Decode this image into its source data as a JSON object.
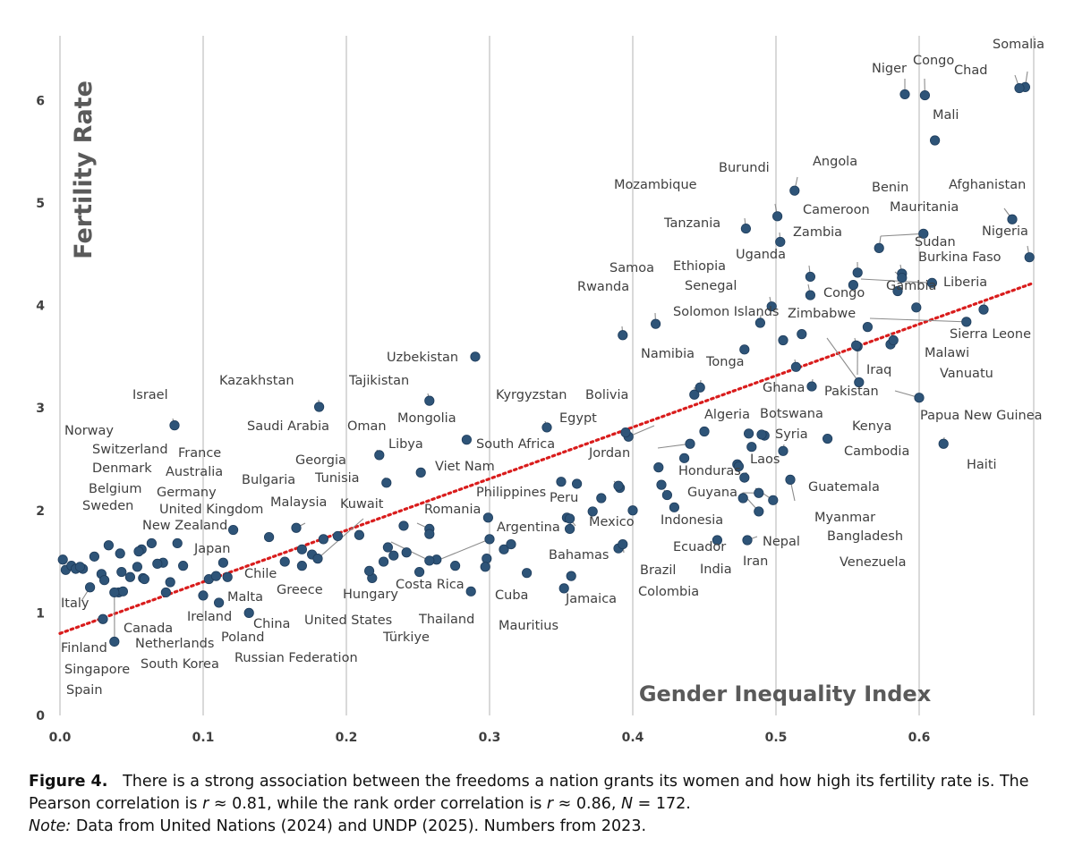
{
  "chart_data": {
    "type": "scatter",
    "title": "",
    "xlabel": "Gender Inequality Index",
    "ylabel": "Fertility Rate",
    "xlim": [
      0.0,
      0.68
    ],
    "ylim": [
      0,
      6.5
    ],
    "xticks": [
      "0.0",
      "0.1",
      "0.2",
      "0.3",
      "0.4",
      "0.5",
      "0.6"
    ],
    "xtick_values": [
      0.0,
      0.1,
      0.2,
      0.3,
      0.4,
      0.5,
      0.6
    ],
    "yticks": [
      "0",
      "1",
      "2",
      "3",
      "4",
      "5",
      "6"
    ],
    "ytick_values": [
      0,
      1,
      2,
      3,
      4,
      5,
      6
    ],
    "grid": "vertical",
    "trendline": {
      "style": "red dotted",
      "x": [
        0.0,
        0.68
      ],
      "y": [
        0.8,
        4.22
      ]
    },
    "labeled_points": [
      {
        "name": "Somalia",
        "x": 0.674,
        "y": 6.13,
        "label_dir": "e"
      },
      {
        "name": "Niger",
        "x": 0.59,
        "y": 6.06,
        "label_dir": "e"
      },
      {
        "name": "Congo",
        "x": 0.604,
        "y": 6.05,
        "label_dir": "e"
      },
      {
        "name": "Chad",
        "x": 0.67,
        "y": 6.12,
        "label_dir": "e"
      },
      {
        "name": "Mali",
        "x": 0.611,
        "y": 5.61,
        "label_dir": "e"
      },
      {
        "name": "Angola",
        "x": 0.513,
        "y": 5.12,
        "label_dir": "e"
      },
      {
        "name": "Burundi",
        "x": 0.501,
        "y": 4.87,
        "label_dir": "e"
      },
      {
        "name": "Mozambique",
        "x": 0.479,
        "y": 4.75,
        "label_dir": "e"
      },
      {
        "name": "Benin",
        "x": 0.572,
        "y": 4.56,
        "label_dir": "e"
      },
      {
        "name": "Afghanistan",
        "x": 0.665,
        "y": 4.84,
        "label_dir": "e"
      },
      {
        "name": "Cameroon",
        "x": 0.557,
        "y": 4.32,
        "label_dir": "e"
      },
      {
        "name": "Mauritania",
        "x": 0.603,
        "y": 4.7,
        "label_dir": "e"
      },
      {
        "name": "Tanzania",
        "x": 0.503,
        "y": 4.62,
        "label_dir": "e"
      },
      {
        "name": "Zambia",
        "x": 0.524,
        "y": 4.28,
        "label_dir": "e"
      },
      {
        "name": "Nigeria",
        "x": 0.677,
        "y": 4.47,
        "label_dir": "e"
      },
      {
        "name": "Sudan",
        "x": 0.588,
        "y": 4.31,
        "label_dir": "e"
      },
      {
        "name": "Uganda",
        "x": 0.524,
        "y": 4.1,
        "label_dir": "e"
      },
      {
        "name": "Burkina Faso",
        "x": 0.609,
        "y": 4.22,
        "label_dir": "e"
      },
      {
        "name": "Samoa",
        "x": 0.416,
        "y": 3.82,
        "label_dir": "e"
      },
      {
        "name": "Ethiopia",
        "x": 0.489,
        "y": 3.83,
        "label_dir": "e"
      },
      {
        "name": "Congo",
        "x": 0.554,
        "y": 4.2,
        "label_dir": "e"
      },
      {
        "name": "Gambia",
        "x": 0.588,
        "y": 4.27,
        "label_dir": "e"
      },
      {
        "name": "Liberia",
        "x": 0.645,
        "y": 3.96,
        "label_dir": "e"
      },
      {
        "name": "Rwanda",
        "x": 0.393,
        "y": 3.71,
        "label_dir": "e"
      },
      {
        "name": "Senegal",
        "x": 0.497,
        "y": 3.99,
        "label_dir": "e"
      },
      {
        "name": "Solomon Islands",
        "x": 0.478,
        "y": 3.57,
        "label_dir": "e"
      },
      {
        "name": "Zimbabwe",
        "x": 0.564,
        "y": 3.79,
        "label_dir": "e"
      },
      {
        "name": "Sierra Leone",
        "x": 0.633,
        "y": 3.84,
        "label_dir": "e"
      },
      {
        "name": "Malawi",
        "x": 0.582,
        "y": 3.66,
        "label_dir": "e"
      },
      {
        "name": "Uzbekistan",
        "x": 0.29,
        "y": 3.5,
        "label_dir": "e"
      },
      {
        "name": "Namibia",
        "x": 0.443,
        "y": 3.13,
        "label_dir": "e"
      },
      {
        "name": "Tonga",
        "x": 0.447,
        "y": 3.2,
        "label_dir": "e"
      },
      {
        "name": "Iraq",
        "x": 0.557,
        "y": 3.6,
        "label_dir": "e"
      },
      {
        "name": "Vanuatu",
        "x": 0.556,
        "y": 3.61,
        "label_dir": "e"
      },
      {
        "name": "Kazakhstan",
        "x": 0.181,
        "y": 3.01,
        "label_dir": "e"
      },
      {
        "name": "Tajikistan",
        "x": 0.258,
        "y": 3.07,
        "label_dir": "e"
      },
      {
        "name": "Ghana",
        "x": 0.514,
        "y": 3.4,
        "label_dir": "e"
      },
      {
        "name": "Pakistan",
        "x": 0.558,
        "y": 3.25,
        "label_dir": "e"
      },
      {
        "name": "Israel",
        "x": 0.08,
        "y": 2.83,
        "label_dir": "e"
      },
      {
        "name": "Kyrgyzstan",
        "x": 0.34,
        "y": 2.81,
        "label_dir": "e"
      },
      {
        "name": "Bolivia",
        "x": 0.397,
        "y": 2.72,
        "label_dir": "e"
      },
      {
        "name": "Algeria",
        "x": 0.481,
        "y": 2.75,
        "label_dir": "e"
      },
      {
        "name": "Botswana",
        "x": 0.49,
        "y": 2.74,
        "label_dir": "e"
      },
      {
        "name": "Kenya",
        "x": 0.525,
        "y": 3.21,
        "label_dir": "e"
      },
      {
        "name": "Papua New Guinea",
        "x": 0.6,
        "y": 3.1,
        "label_dir": "e"
      },
      {
        "name": "Mongolia",
        "x": 0.284,
        "y": 2.69,
        "label_dir": "e"
      },
      {
        "name": "Egypt",
        "x": 0.395,
        "y": 2.76,
        "label_dir": "e"
      },
      {
        "name": "Syria",
        "x": 0.483,
        "y": 2.62,
        "label_dir": "e"
      },
      {
        "name": "Haiti",
        "x": 0.617,
        "y": 2.65,
        "label_dir": "e"
      },
      {
        "name": "Saudi Arabia",
        "x": 0.228,
        "y": 2.27,
        "label_dir": "e"
      },
      {
        "name": "Oman",
        "x": 0.223,
        "y": 2.54,
        "label_dir": "e"
      },
      {
        "name": "Libya",
        "x": 0.252,
        "y": 2.37,
        "label_dir": "e"
      },
      {
        "name": "South Africa",
        "x": 0.391,
        "y": 2.22,
        "label_dir": "e"
      },
      {
        "name": "Jordan",
        "x": 0.44,
        "y": 2.65,
        "label_dir": "e"
      },
      {
        "name": "Laos",
        "x": 0.474,
        "y": 2.43,
        "label_dir": "e"
      },
      {
        "name": "Cambodia",
        "x": 0.505,
        "y": 2.58,
        "label_dir": "e"
      },
      {
        "name": "Viet Nam",
        "x": 0.299,
        "y": 1.93,
        "label_dir": "e"
      },
      {
        "name": "Georgia",
        "x": 0.258,
        "y": 1.82,
        "label_dir": "e"
      },
      {
        "name": "Tunisia",
        "x": 0.258,
        "y": 1.77,
        "label_dir": "e"
      },
      {
        "name": "Honduras",
        "x": 0.477,
        "y": 2.12,
        "label_dir": "e"
      },
      {
        "name": "Guatemala",
        "x": 0.478,
        "y": 2.32,
        "label_dir": "e"
      },
      {
        "name": "Bulgaria",
        "x": 0.209,
        "y": 1.76,
        "label_dir": "e"
      },
      {
        "name": "Philippines",
        "x": 0.39,
        "y": 2.24,
        "label_dir": "e"
      },
      {
        "name": "Peru",
        "x": 0.354,
        "y": 1.93,
        "label_dir": "e"
      },
      {
        "name": "Guyana",
        "x": 0.488,
        "y": 2.17,
        "label_dir": "e"
      },
      {
        "name": "Indonesia",
        "x": 0.424,
        "y": 2.15,
        "label_dir": "e"
      },
      {
        "name": "Myanmar",
        "x": 0.498,
        "y": 2.1,
        "label_dir": "e"
      },
      {
        "name": "Malaysia",
        "x": 0.165,
        "y": 1.83,
        "label_dir": "e"
      },
      {
        "name": "Kuwait",
        "x": 0.18,
        "y": 1.53,
        "label_dir": "e"
      },
      {
        "name": "Romania",
        "x": 0.258,
        "y": 1.51,
        "label_dir": "e"
      },
      {
        "name": "Mexico",
        "x": 0.356,
        "y": 1.82,
        "label_dir": "e"
      },
      {
        "name": "Bangladesh",
        "x": 0.488,
        "y": 1.99,
        "label_dir": "e"
      },
      {
        "name": "Argentina",
        "x": 0.3,
        "y": 1.72,
        "label_dir": "e"
      },
      {
        "name": "Ecuador",
        "x": 0.356,
        "y": 1.92,
        "label_dir": "e"
      },
      {
        "name": "Nepal",
        "x": 0.48,
        "y": 1.71,
        "label_dir": "e"
      },
      {
        "name": "United Kingdom",
        "x": 0.121,
        "y": 1.81,
        "label_dir": "e"
      },
      {
        "name": "New Zealand",
        "x": 0.082,
        "y": 1.68,
        "label_dir": "e"
      },
      {
        "name": "Venezuela",
        "x": 0.51,
        "y": 2.3,
        "label_dir": "e"
      },
      {
        "name": "India",
        "x": 0.4,
        "y": 2.0,
        "label_dir": "e"
      },
      {
        "name": "Bahamas",
        "x": 0.326,
        "y": 1.39,
        "label_dir": "e"
      },
      {
        "name": "Brazil",
        "x": 0.39,
        "y": 1.63,
        "label_dir": "e"
      },
      {
        "name": "Iran",
        "x": 0.459,
        "y": 1.71,
        "label_dir": "e"
      },
      {
        "name": "Japan",
        "x": 0.077,
        "y": 1.3,
        "label_dir": "e"
      },
      {
        "name": "Chile",
        "x": 0.109,
        "y": 1.36,
        "label_dir": "e"
      },
      {
        "name": "Colombia",
        "x": 0.393,
        "y": 1.67,
        "label_dir": "e"
      },
      {
        "name": "Jamaica",
        "x": 0.357,
        "y": 1.36,
        "label_dir": "e"
      },
      {
        "name": "Greece",
        "x": 0.117,
        "y": 1.35,
        "label_dir": "e"
      },
      {
        "name": "Costa Rica",
        "x": 0.233,
        "y": 1.56,
        "label_dir": "e"
      },
      {
        "name": "Cuba",
        "x": 0.297,
        "y": 1.45,
        "label_dir": "e"
      },
      {
        "name": "Malta",
        "x": 0.111,
        "y": 1.1,
        "label_dir": "e"
      },
      {
        "name": "Hungary",
        "x": 0.216,
        "y": 1.41,
        "label_dir": "e"
      },
      {
        "name": "Italy",
        "x": 0.021,
        "y": 1.25,
        "label_dir": "e"
      },
      {
        "name": "Ireland",
        "x": 0.074,
        "y": 1.2,
        "label_dir": "e"
      },
      {
        "name": "China",
        "x": 0.132,
        "y": 1.0,
        "label_dir": "e"
      },
      {
        "name": "United States",
        "x": 0.169,
        "y": 1.62,
        "label_dir": "e"
      },
      {
        "name": "Thailand",
        "x": 0.287,
        "y": 1.21,
        "label_dir": "e"
      },
      {
        "name": "Mauritius",
        "x": 0.352,
        "y": 1.24,
        "label_dir": "e"
      },
      {
        "name": "Canada",
        "x": 0.059,
        "y": 1.33,
        "label_dir": "e"
      },
      {
        "name": "Poland",
        "x": 0.1,
        "y": 1.17,
        "label_dir": "e"
      },
      {
        "name": "Finland",
        "x": 0.03,
        "y": 0.94,
        "label_dir": "e"
      },
      {
        "name": "Netherlands",
        "x": 0.041,
        "y": 1.2,
        "label_dir": "e"
      },
      {
        "name": "Türkiye",
        "x": 0.229,
        "y": 1.64,
        "label_dir": "e"
      },
      {
        "name": "Russian Federation",
        "x": 0.169,
        "y": 1.46,
        "label_dir": "e"
      },
      {
        "name": "Singapore",
        "x": 0.038,
        "y": 0.72,
        "label_dir": "e"
      },
      {
        "name": "South Korea",
        "x": 0.044,
        "y": 1.21,
        "label_dir": "e"
      },
      {
        "name": "Spain",
        "x": 0.038,
        "y": 1.2,
        "label_dir": "e"
      },
      {
        "name": "Norway",
        "x": 0.011,
        "y": 1.43,
        "label_dir": "e"
      },
      {
        "name": "Switzerland",
        "x": 0.016,
        "y": 1.43,
        "label_dir": "e"
      },
      {
        "name": "France",
        "x": 0.064,
        "y": 1.68,
        "label_dir": "e"
      },
      {
        "name": "Denmark",
        "x": 0.014,
        "y": 1.45,
        "label_dir": "e"
      },
      {
        "name": "Australia",
        "x": 0.057,
        "y": 1.62,
        "label_dir": "e"
      },
      {
        "name": "Belgium",
        "x": 0.055,
        "y": 1.6,
        "label_dir": "e"
      },
      {
        "name": "Germany",
        "x": 0.068,
        "y": 1.48,
        "label_dir": "e"
      },
      {
        "name": "Sweden",
        "x": 0.034,
        "y": 1.66,
        "label_dir": "e"
      }
    ],
    "unlabeled_points": [
      {
        "x": 0.002,
        "y": 1.52
      },
      {
        "x": 0.004,
        "y": 1.42
      },
      {
        "x": 0.008,
        "y": 1.46
      },
      {
        "x": 0.024,
        "y": 1.55
      },
      {
        "x": 0.029,
        "y": 1.38
      },
      {
        "x": 0.031,
        "y": 1.32
      },
      {
        "x": 0.042,
        "y": 1.58
      },
      {
        "x": 0.043,
        "y": 1.4
      },
      {
        "x": 0.049,
        "y": 1.35
      },
      {
        "x": 0.054,
        "y": 1.45
      },
      {
        "x": 0.058,
        "y": 1.34
      },
      {
        "x": 0.072,
        "y": 1.49
      },
      {
        "x": 0.086,
        "y": 1.46
      },
      {
        "x": 0.104,
        "y": 1.33
      },
      {
        "x": 0.114,
        "y": 1.49
      },
      {
        "x": 0.146,
        "y": 1.74
      },
      {
        "x": 0.157,
        "y": 1.5
      },
      {
        "x": 0.176,
        "y": 1.57
      },
      {
        "x": 0.184,
        "y": 1.72
      },
      {
        "x": 0.194,
        "y": 1.75
      },
      {
        "x": 0.218,
        "y": 1.34
      },
      {
        "x": 0.226,
        "y": 1.5
      },
      {
        "x": 0.24,
        "y": 1.85
      },
      {
        "x": 0.242,
        "y": 1.59
      },
      {
        "x": 0.251,
        "y": 1.4
      },
      {
        "x": 0.263,
        "y": 1.52
      },
      {
        "x": 0.276,
        "y": 1.46
      },
      {
        "x": 0.298,
        "y": 1.53
      },
      {
        "x": 0.31,
        "y": 1.62
      },
      {
        "x": 0.315,
        "y": 1.67
      },
      {
        "x": 0.35,
        "y": 2.28
      },
      {
        "x": 0.361,
        "y": 2.26
      },
      {
        "x": 0.372,
        "y": 1.99
      },
      {
        "x": 0.378,
        "y": 2.12
      },
      {
        "x": 0.418,
        "y": 2.42
      },
      {
        "x": 0.42,
        "y": 2.25
      },
      {
        "x": 0.429,
        "y": 2.03
      },
      {
        "x": 0.436,
        "y": 2.51
      },
      {
        "x": 0.45,
        "y": 2.77
      },
      {
        "x": 0.473,
        "y": 2.45
      },
      {
        "x": 0.492,
        "y": 2.73
      },
      {
        "x": 0.505,
        "y": 3.66
      },
      {
        "x": 0.518,
        "y": 3.72
      },
      {
        "x": 0.536,
        "y": 2.7
      },
      {
        "x": 0.58,
        "y": 3.62
      },
      {
        "x": 0.585,
        "y": 4.14
      },
      {
        "x": 0.598,
        "y": 3.98
      }
    ]
  },
  "caption": {
    "figure_label": "Figure 4.",
    "text_1": "There is a strong association between the freedoms a nation grants its women and how high its fertility rate is. The Pearson correlation is ",
    "r_symbol": "r",
    "text_2": " ≈ 0.81, while the rank order correlation is ",
    "r_symbol_2": "r",
    "text_3": " ≈ 0.86, ",
    "n_symbol": "N",
    "text_4": " = 172.",
    "note_label": "Note:",
    "note_text": " Data from United Nations (2024) and UNDP (2025). Numbers from 2023."
  },
  "colors": {
    "point": "#2e5478",
    "point_edge": "#1f3d5c",
    "trendline": "#d91c1c",
    "gridline": "#d9d9d9",
    "leader": "#8c8c8c",
    "label_text": "#3f3f3f",
    "axis_title": "#5a5a5a"
  }
}
